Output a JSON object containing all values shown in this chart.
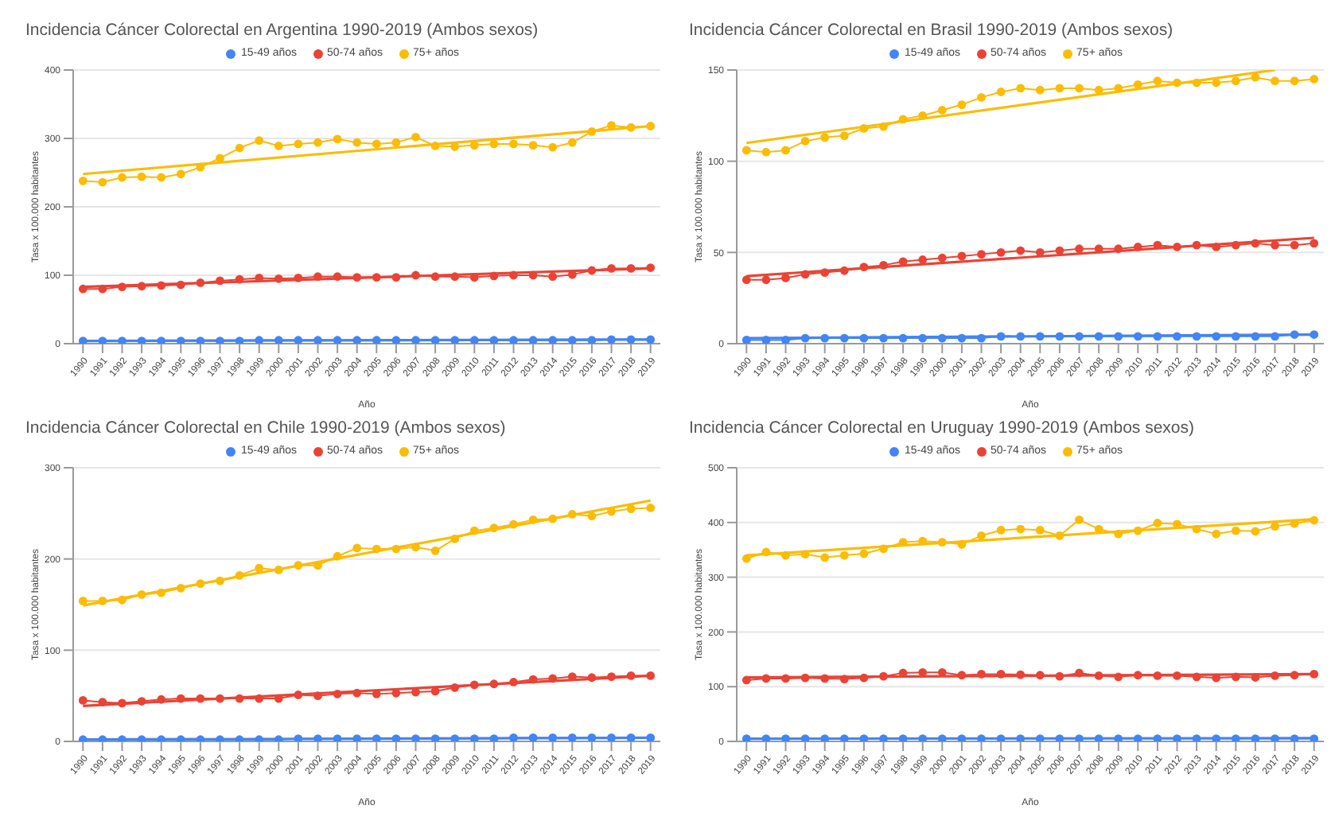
{
  "chart_data": [
    {
      "type": "line",
      "title": "Incidencia Cáncer Colorectal en Argentina 1990-2019 (Ambos sexos)",
      "xlabel": "Año",
      "ylabel": "Tasa x 100.000 habitantes",
      "x": [
        1990,
        1991,
        1992,
        1993,
        1994,
        1995,
        1996,
        1997,
        1998,
        1999,
        2000,
        2001,
        2002,
        2003,
        2004,
        2005,
        2006,
        2007,
        2008,
        2009,
        2010,
        2011,
        2012,
        2013,
        2014,
        2015,
        2016,
        2017,
        2018,
        2019
      ],
      "xlim": [
        1989.5,
        2019.5
      ],
      "xticks": [
        1990,
        1991,
        1992,
        1993,
        1994,
        1995,
        1996,
        1997,
        1998,
        1999,
        2000,
        2001,
        2002,
        2003,
        2004,
        2005,
        2006,
        2007,
        2008,
        2009,
        2010,
        2011,
        2012,
        2013,
        2014,
        2015,
        2016,
        2017,
        2018,
        2019
      ],
      "ylim": [
        0,
        400
      ],
      "yticks": [
        0,
        100,
        200,
        300,
        400
      ],
      "grid": "y",
      "legend": "top",
      "marker": "circle",
      "series": [
        {
          "name": "15-49 años",
          "color": "#4285f4",
          "values": [
            4,
            4,
            4,
            4,
            4,
            4,
            4,
            4,
            4,
            5,
            5,
            5,
            5,
            5,
            5,
            5,
            5,
            5,
            5,
            5,
            5,
            5,
            5,
            5,
            5,
            5,
            5,
            6,
            6,
            6
          ]
        },
        {
          "name": "50-74 años",
          "color": "#ea4335",
          "values": [
            80,
            80,
            83,
            84,
            85,
            86,
            89,
            92,
            94,
            96,
            95,
            96,
            98,
            98,
            97,
            97,
            97,
            100,
            98,
            98,
            97,
            99,
            100,
            100,
            98,
            101,
            107,
            110,
            110,
            111
          ]
        },
        {
          "name": "75+ años",
          "color": "#fbbc04",
          "values": [
            238,
            236,
            243,
            244,
            243,
            248,
            258,
            271,
            286,
            297,
            289,
            292,
            294,
            299,
            294,
            292,
            294,
            302,
            289,
            288,
            290,
            292,
            292,
            290,
            287,
            294,
            310,
            319,
            316,
            318
          ]
        },
        {
          "type": "line",
          "marker": "none",
          "color": "#4285f4",
          "x": [
            1990,
            2019
          ],
          "values": [
            4,
            6
          ]
        },
        {
          "type": "line",
          "marker": "none",
          "color": "#ea4335",
          "x": [
            1990,
            2019
          ],
          "values": [
            83,
            110
          ]
        },
        {
          "type": "line",
          "marker": "none",
          "color": "#fbbc04",
          "x": [
            1990,
            2019
          ],
          "values": [
            248,
            318
          ]
        }
      ]
    },
    {
      "type": "line",
      "title": "Incidencia Cáncer Colorectal en Brasil 1990-2019 (Ambos sexos)",
      "xlabel": "Año",
      "ylabel": "Tasa x 100.000 habitantes",
      "x": [
        1990,
        1991,
        1992,
        1993,
        1994,
        1995,
        1996,
        1997,
        1998,
        1999,
        2000,
        2001,
        2002,
        2003,
        2004,
        2005,
        2006,
        2007,
        2008,
        2009,
        2010,
        2011,
        2012,
        2013,
        2014,
        2015,
        2016,
        2017,
        2018,
        2019
      ],
      "xlim": [
        1989.5,
        2019.5
      ],
      "xticks": [
        1990,
        1991,
        1992,
        1993,
        1994,
        1995,
        1996,
        1997,
        1998,
        1999,
        2000,
        2001,
        2002,
        2003,
        2004,
        2005,
        2006,
        2007,
        2008,
        2009,
        2010,
        2011,
        2012,
        2013,
        2014,
        2015,
        2016,
        2017,
        2018,
        2019
      ],
      "ylim": [
        0,
        150
      ],
      "yticks": [
        0,
        50,
        100,
        150
      ],
      "grid": "y",
      "legend": "top",
      "marker": "circle",
      "series": [
        {
          "name": "15-49 años",
          "color": "#4285f4",
          "values": [
            2,
            2,
            2,
            3,
            3,
            3,
            3,
            3,
            3,
            3,
            3,
            3,
            3,
            4,
            4,
            4,
            4,
            4,
            4,
            4,
            4,
            4,
            4,
            4,
            4,
            4,
            4,
            4,
            5,
            5
          ]
        },
        {
          "name": "50-74 años",
          "color": "#ea4335",
          "values": [
            35,
            35,
            36,
            38,
            39,
            40,
            42,
            43,
            45,
            46,
            47,
            48,
            49,
            50,
            51,
            50,
            51,
            52,
            52,
            52,
            53,
            54,
            53,
            54,
            53,
            54,
            55,
            54,
            54,
            55
          ]
        },
        {
          "name": "75+ años",
          "color": "#fbbc04",
          "values": [
            106,
            105,
            106,
            111,
            113,
            114,
            118,
            119,
            123,
            125,
            128,
            131,
            135,
            138,
            140,
            139,
            140,
            140,
            139,
            140,
            142,
            144,
            143,
            143,
            143,
            144,
            146,
            144,
            144,
            145
          ]
        },
        {
          "type": "line",
          "marker": "none",
          "color": "#4285f4",
          "x": [
            1990,
            2019
          ],
          "values": [
            3,
            5
          ]
        },
        {
          "type": "line",
          "marker": "none",
          "color": "#ea4335",
          "x": [
            1990,
            2019
          ],
          "values": [
            37,
            58
          ]
        },
        {
          "type": "line",
          "marker": "none",
          "color": "#fbbc04",
          "x": [
            1990,
            2017
          ],
          "values": [
            110,
            150
          ]
        }
      ]
    },
    {
      "type": "line",
      "title": "Incidencia Cáncer Colorectal en Chile 1990-2019 (Ambos sexos)",
      "xlabel": "Año",
      "ylabel": "Tasa x 100.000 habitantes",
      "x": [
        1990,
        1991,
        1992,
        1993,
        1994,
        1995,
        1996,
        1997,
        1998,
        1999,
        2000,
        2001,
        2002,
        2003,
        2004,
        2005,
        2006,
        2007,
        2008,
        2009,
        2010,
        2011,
        2012,
        2013,
        2014,
        2015,
        2016,
        2017,
        2018,
        2019
      ],
      "xlim": [
        1989.5,
        2019.5
      ],
      "xticks": [
        1990,
        1991,
        1992,
        1993,
        1994,
        1995,
        1996,
        1997,
        1998,
        1999,
        2000,
        2001,
        2002,
        2003,
        2004,
        2005,
        2006,
        2007,
        2008,
        2009,
        2010,
        2011,
        2012,
        2013,
        2014,
        2015,
        2016,
        2017,
        2018,
        2019
      ],
      "ylim": [
        0,
        300
      ],
      "yticks": [
        0,
        100,
        200,
        300
      ],
      "grid": "y",
      "legend": "top",
      "marker": "circle",
      "series": [
        {
          "name": "15-49 años",
          "color": "#4285f4",
          "values": [
            2,
            2,
            2,
            2,
            2,
            2,
            2,
            2,
            2,
            2,
            2,
            3,
            3,
            3,
            3,
            3,
            3,
            3,
            3,
            3,
            3,
            3,
            4,
            4,
            4,
            4,
            4,
            4,
            4,
            4
          ]
        },
        {
          "name": "50-74 años",
          "color": "#ea4335",
          "values": [
            45,
            43,
            42,
            44,
            46,
            47,
            47,
            47,
            47,
            47,
            47,
            51,
            50,
            52,
            53,
            52,
            53,
            54,
            55,
            59,
            62,
            63,
            65,
            68,
            69,
            71,
            70,
            71,
            72,
            72
          ]
        },
        {
          "name": "75+ años",
          "color": "#fbbc04",
          "values": [
            154,
            154,
            155,
            161,
            163,
            168,
            173,
            176,
            182,
            190,
            188,
            193,
            193,
            203,
            212,
            211,
            211,
            213,
            209,
            222,
            231,
            234,
            238,
            243,
            244,
            249,
            247,
            252,
            255,
            256
          ]
        },
        {
          "type": "line",
          "marker": "none",
          "color": "#4285f4",
          "x": [
            1990,
            2019
          ],
          "values": [
            2,
            4
          ]
        },
        {
          "type": "line",
          "marker": "none",
          "color": "#ea4335",
          "x": [
            1990,
            2019
          ],
          "values": [
            39,
            72
          ]
        },
        {
          "type": "line",
          "marker": "none",
          "color": "#fbbc04",
          "x": [
            1990,
            2019
          ],
          "values": [
            149,
            264
          ]
        }
      ]
    },
    {
      "type": "line",
      "title": "Incidencia Cáncer Colorectal en Uruguay 1990-2019 (Ambos sexos)",
      "xlabel": "Año",
      "ylabel": "Tasa x 100.000 habitantes",
      "x": [
        1990,
        1991,
        1992,
        1993,
        1994,
        1995,
        1996,
        1997,
        1998,
        1999,
        2000,
        2001,
        2002,
        2003,
        2004,
        2005,
        2006,
        2007,
        2008,
        2009,
        2010,
        2011,
        2012,
        2013,
        2014,
        2015,
        2016,
        2017,
        2018,
        2019
      ],
      "xlim": [
        1989.5,
        2019.5
      ],
      "xticks": [
        1990,
        1991,
        1992,
        1993,
        1994,
        1995,
        1996,
        1997,
        1998,
        1999,
        2000,
        2001,
        2002,
        2003,
        2004,
        2005,
        2006,
        2007,
        2008,
        2009,
        2010,
        2011,
        2012,
        2013,
        2014,
        2015,
        2016,
        2017,
        2018,
        2019
      ],
      "ylim": [
        0,
        500
      ],
      "yticks": [
        0,
        100,
        200,
        300,
        400,
        500
      ],
      "grid": "y",
      "legend": "top",
      "marker": "circle",
      "series": [
        {
          "name": "15-49 años",
          "color": "#4285f4",
          "values": [
            5,
            5,
            5,
            5,
            5,
            5,
            5,
            5,
            5,
            5,
            5,
            5,
            5,
            5,
            5,
            5,
            5,
            5,
            5,
            5,
            5,
            5,
            5,
            5,
            5,
            5,
            5,
            5,
            5,
            5
          ]
        },
        {
          "name": "50-74 años",
          "color": "#ea4335",
          "values": [
            112,
            115,
            115,
            116,
            115,
            114,
            116,
            119,
            125,
            126,
            126,
            121,
            123,
            123,
            122,
            121,
            119,
            125,
            120,
            118,
            121,
            120,
            120,
            118,
            116,
            118,
            117,
            120,
            121,
            123
          ]
        },
        {
          "name": "75+ años",
          "color": "#fbbc04",
          "values": [
            334,
            346,
            340,
            342,
            336,
            340,
            343,
            352,
            364,
            366,
            364,
            360,
            376,
            386,
            388,
            386,
            376,
            405,
            388,
            379,
            385,
            399,
            397,
            388,
            379,
            385,
            384,
            393,
            398,
            404
          ]
        },
        {
          "type": "line",
          "marker": "none",
          "color": "#4285f4",
          "x": [
            1990,
            2019
          ],
          "values": [
            5,
            6
          ]
        },
        {
          "type": "line",
          "marker": "none",
          "color": "#ea4335",
          "x": [
            1990,
            2019
          ],
          "values": [
            117,
            123
          ]
        },
        {
          "type": "line",
          "marker": "none",
          "color": "#fbbc04",
          "x": [
            1990,
            2019
          ],
          "values": [
            340,
            406
          ]
        }
      ]
    }
  ]
}
